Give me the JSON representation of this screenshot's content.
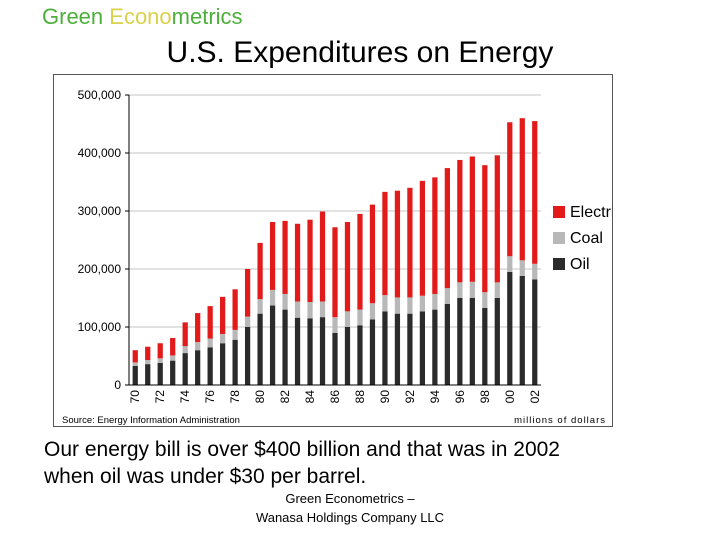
{
  "brand": {
    "part1": "Green ",
    "part2": "Econo",
    "part3": "metrics",
    "colors": {
      "part1": "#4caf3a",
      "part2": "#d9d24a",
      "part3": "#4caf3a"
    }
  },
  "title": "U.S. Expenditures on Energy",
  "chart_data": {
    "type": "bar",
    "stacked": true,
    "categories": [
      "70",
      "71",
      "72",
      "73",
      "74",
      "75",
      "76",
      "77",
      "78",
      "79",
      "80",
      "81",
      "82",
      "83",
      "84",
      "85",
      "86",
      "87",
      "88",
      "89",
      "90",
      "91",
      "92",
      "93",
      "94",
      "95",
      "96",
      "97",
      "98",
      "99",
      "00",
      "01",
      "02"
    ],
    "x_tick_labels": [
      "70",
      "72",
      "74",
      "76",
      "78",
      "80",
      "82",
      "84",
      "86",
      "88",
      "90",
      "92",
      "94",
      "96",
      "98",
      "00",
      "02"
    ],
    "series": [
      {
        "name": "Oil",
        "color": "#2b2b2b",
        "values": [
          33000,
          36000,
          38000,
          42000,
          55000,
          60000,
          65000,
          72000,
          78000,
          100000,
          123000,
          137000,
          130000,
          116000,
          115000,
          117000,
          90000,
          100000,
          103000,
          113000,
          127000,
          123000,
          123000,
          127000,
          130000,
          140000,
          150000,
          150000,
          133000,
          150000,
          195000,
          188000,
          182000
        ]
      },
      {
        "name": "Coal",
        "color": "#b8b8b8",
        "values": [
          6000,
          7000,
          8000,
          9000,
          12000,
          14000,
          15000,
          16000,
          17000,
          18000,
          25000,
          27000,
          27000,
          28000,
          28000,
          27000,
          27000,
          27000,
          27000,
          28000,
          28000,
          28000,
          28000,
          27000,
          27000,
          27000,
          27000,
          28000,
          27000,
          27000,
          27000,
          27000,
          27000
        ]
      },
      {
        "name": "Electric",
        "color": "#e21a1a",
        "values": [
          21000,
          23000,
          26000,
          30000,
          41000,
          50000,
          56000,
          64000,
          70000,
          82000,
          97000,
          117000,
          126000,
          134000,
          142000,
          155000,
          155000,
          154000,
          165000,
          170000,
          178000,
          184000,
          189000,
          198000,
          201000,
          207000,
          211000,
          216000,
          219000,
          219000,
          231000,
          245000,
          246000
        ]
      }
    ],
    "ylim": [
      0,
      500000
    ],
    "y_ticks": [
      0,
      100000,
      200000,
      300000,
      400000,
      500000
    ],
    "y_tick_labels": [
      "0",
      "100,000",
      "200,000",
      "300,000",
      "400,000",
      "500,000"
    ],
    "legend_order": [
      "Electric",
      "Coal",
      "Oil"
    ],
    "legend_position": "right",
    "source": "Source: Energy Information Administration",
    "units_note": "millions of dollars"
  },
  "caption": {
    "line1": "Our energy bill is over $400 billion and that was in 2002",
    "line2": "when oil was under $30 per barrel."
  },
  "footer": {
    "line1": "Green Econometrics –",
    "line2": "Wanasa Holdings Company LLC"
  }
}
